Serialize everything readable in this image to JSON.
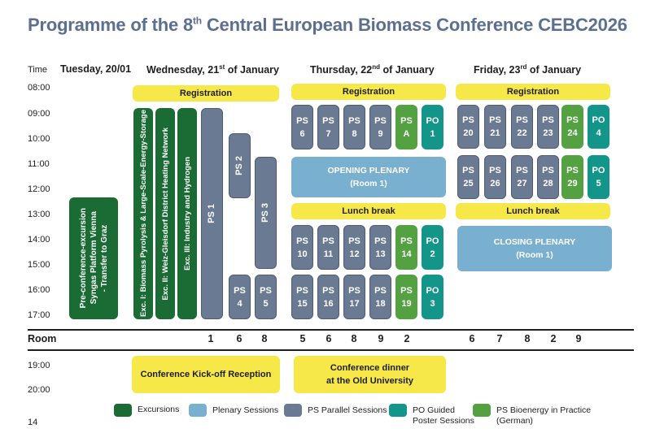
{
  "title": {
    "prefix": "Programme of the 8",
    "sup": "th",
    "suffix": " Central European Biomass Conference CEBC2026"
  },
  "headers": {
    "time": "Time",
    "tue": "Tuesday, 20/01",
    "wed": {
      "pre": "Wednesday, 21",
      "sup": "st",
      "post": " of January"
    },
    "thu": {
      "pre": "Thursday, 22",
      "sup": "nd",
      "post": " of January"
    },
    "fri": {
      "pre": "Friday, 23",
      "sup": "rd",
      "post": " of January"
    }
  },
  "times": [
    "08:00",
    "09:00",
    "10:00",
    "11:00",
    "12:00",
    "13:00",
    "14:00",
    "15:00",
    "16:00",
    "17:00"
  ],
  "evening_times": [
    "19:00",
    "20:00"
  ],
  "registration": "Registration",
  "lunch": "Lunch break",
  "opening": {
    "l1": "OPENING PLENARY",
    "l2": "(Room 1)"
  },
  "closing": {
    "l1": "CLOSING PLENARY",
    "l2": "(Room 1)"
  },
  "tue_excursion": {
    "l1": "Pre-conference-excursion",
    "l2": "Syngas Platform Vienna",
    "l3": "- Transfer to Graz"
  },
  "wed_exc": [
    "Exc. I: Biomass Pyrolysis & Large-Scale-Energy-Storage",
    "Exc. II: Weiz-Gleisdorf District Heating Network",
    "Exc. III: Industry and Hydrogen"
  ],
  "wed_ps": {
    "ps1": "PS 1",
    "ps2": "PS 2",
    "ps3": "PS 3",
    "ps4": {
      "a": "PS",
      "b": "4"
    },
    "ps5": {
      "a": "PS",
      "b": "5"
    }
  },
  "thu_rows": [
    [
      {
        "a": "PS",
        "b": "6"
      },
      {
        "a": "PS",
        "b": "7"
      },
      {
        "a": "PS",
        "b": "8"
      },
      {
        "a": "PS",
        "b": "9"
      },
      {
        "a": "PS",
        "b": "A"
      },
      {
        "a": "PO",
        "b": "1"
      }
    ],
    [
      {
        "a": "PS",
        "b": "10"
      },
      {
        "a": "PS",
        "b": "11"
      },
      {
        "a": "PS",
        "b": "12"
      },
      {
        "a": "PS",
        "b": "13"
      },
      {
        "a": "PS",
        "b": "14"
      },
      {
        "a": "PO",
        "b": "2"
      }
    ],
    [
      {
        "a": "PS",
        "b": "15"
      },
      {
        "a": "PS",
        "b": "16"
      },
      {
        "a": "PS",
        "b": "17"
      },
      {
        "a": "PS",
        "b": "18"
      },
      {
        "a": "PS",
        "b": "19"
      },
      {
        "a": "PO",
        "b": "3"
      }
    ]
  ],
  "fri_rows": [
    [
      {
        "a": "PS",
        "b": "20"
      },
      {
        "a": "PS",
        "b": "21"
      },
      {
        "a": "PS",
        "b": "22"
      },
      {
        "a": "PS",
        "b": "23"
      },
      {
        "a": "PS",
        "b": "24"
      },
      {
        "a": "PO",
        "b": "4"
      }
    ],
    [
      {
        "a": "PS",
        "b": "25"
      },
      {
        "a": "PS",
        "b": "26"
      },
      {
        "a": "PS",
        "b": "27"
      },
      {
        "a": "PS",
        "b": "28"
      },
      {
        "a": "PS",
        "b": "29"
      },
      {
        "a": "PO",
        "b": "5"
      }
    ]
  ],
  "room": {
    "label": "Room",
    "wed": [
      "1",
      "6",
      "8"
    ],
    "thu": [
      "5",
      "6",
      "8",
      "9",
      "2"
    ],
    "fri": [
      "6",
      "7",
      "8",
      "2",
      "9"
    ]
  },
  "evening": {
    "kickoff": "Conference Kick-off Reception",
    "dinner_l1": "Conference dinner",
    "dinner_l2": "at the Old University"
  },
  "legend": {
    "excursions": "Excursions",
    "plenary": "Plenary Sessions",
    "ps": "PS Parallel Sessions",
    "po_l1": "PO Guided",
    "po_l2": "Poster Sessions",
    "bio_l1": "PS Bioenergy in Practice",
    "bio_l2": "(German)"
  },
  "page_number": "14",
  "colors": {
    "title": "#5b6f8f",
    "yellow": "#f7e84a",
    "ps": "#6a7a93",
    "bio": "#53a140",
    "po": "#14958a",
    "excursion": "#1b6b34",
    "plenary": "#79afcf"
  }
}
